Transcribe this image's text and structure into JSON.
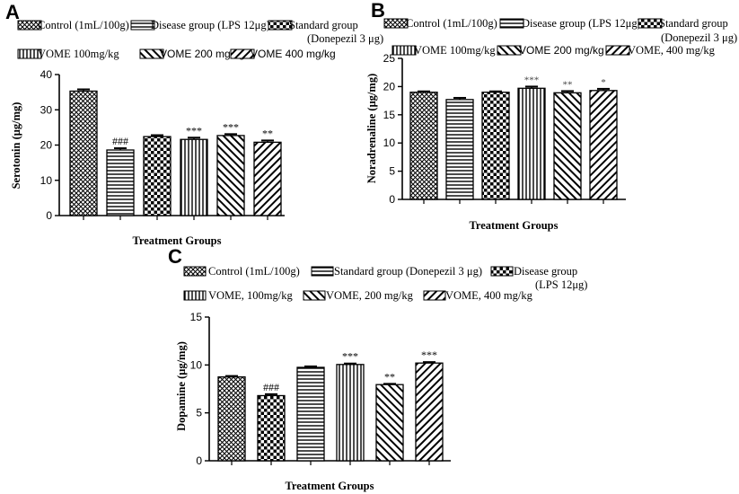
{
  "chart_data": [
    {
      "panel": "A",
      "type": "bar",
      "legend": [
        "Control (1mL/100g)",
        "Disease group (LPS 12μg)",
        "Standard group (Donepezil 3 μg)",
        "VOME 100mg/kg",
        "VOME 200 mg/kg",
        "VOME 400 mg/kg"
      ],
      "categories": [
        "Control (1mL/100g)",
        "Disease group (LPS 12μg)",
        "Standard group (Donepezil 3 μg)",
        "VOME 100mg/kg",
        "VOME 200 mg/kg",
        "VOME 400 mg/kg"
      ],
      "values": [
        35.3,
        18.6,
        22.4,
        21.6,
        22.7,
        20.8
      ],
      "errors": [
        0.5,
        0.5,
        0.4,
        0.5,
        0.4,
        0.5
      ],
      "patterns": [
        "cross",
        "hstripe",
        "check",
        "vstripe",
        "diagR",
        "diagL"
      ],
      "significance": [
        "",
        "###",
        "",
        "***",
        "***",
        "**"
      ],
      "xlabel": "Treatment Groups",
      "ylabel": "Serotonin (μg/mg)",
      "ylim": [
        0,
        40
      ],
      "yticks": [
        0,
        10,
        20,
        30,
        40
      ]
    },
    {
      "panel": "B",
      "type": "bar",
      "legend": [
        "Control (1mL/100g)",
        "Disease group (LPS 12μg)",
        "Standard group (Donepezil 3 μg)",
        "VOME 100mg/kg",
        "VOME 200 mg/kg",
        "VOME, 400 mg/kg"
      ],
      "categories": [
        "Control (1mL/100g)",
        "Disease group (LPS 12μg)",
        "Standard group (Donepezil 3 μg)",
        "VOME 100mg/kg",
        "VOME 200 mg/kg",
        "VOME, 400 mg/kg"
      ],
      "values": [
        19.0,
        17.7,
        19.0,
        19.7,
        18.9,
        19.3
      ],
      "errors": [
        0.15,
        0.3,
        0.15,
        0.3,
        0.3,
        0.3
      ],
      "patterns": [
        "cross",
        "hstripe",
        "check",
        "vstripe",
        "diagR",
        "diagL"
      ],
      "significance": [
        "",
        "",
        "",
        "***",
        "**",
        "*"
      ],
      "xlabel": "Treatment Groups",
      "ylabel": "Noradrenaline (μg/mg)",
      "ylim": [
        0,
        25
      ],
      "yticks": [
        0,
        5,
        10,
        15,
        20,
        25
      ]
    },
    {
      "panel": "C",
      "type": "bar",
      "legend": [
        "Control (1mL/100g)",
        "Standard group (Donepezil 3 μg)",
        "Disease group (LPS 12μg)",
        "VOME, 100mg/kg",
        "VOME, 200 mg/kg",
        "VOME, 400 mg/kg"
      ],
      "categories": [
        "Control (1mL/100g)",
        "Disease group (LPS 12μg)",
        "Standard group (Donepezil 3 μg)",
        "VOME, 100mg/kg",
        "VOME, 200 mg/kg",
        "VOME, 400 mg/kg"
      ],
      "values": [
        8.75,
        6.8,
        9.75,
        10.05,
        7.95,
        10.2
      ],
      "errors": [
        0.1,
        0.15,
        0.1,
        0.1,
        0.08,
        0.1
      ],
      "patterns": [
        "cross",
        "check",
        "hstripe",
        "vstripe",
        "diagR",
        "diagL"
      ],
      "significance": [
        "",
        "###",
        "",
        "***",
        "**",
        "***"
      ],
      "xlabel": "Treatment Groups",
      "ylabel": "Dopamine (μg/mg)",
      "ylim": [
        0,
        15
      ],
      "yticks": [
        0,
        5,
        10,
        15
      ]
    }
  ]
}
